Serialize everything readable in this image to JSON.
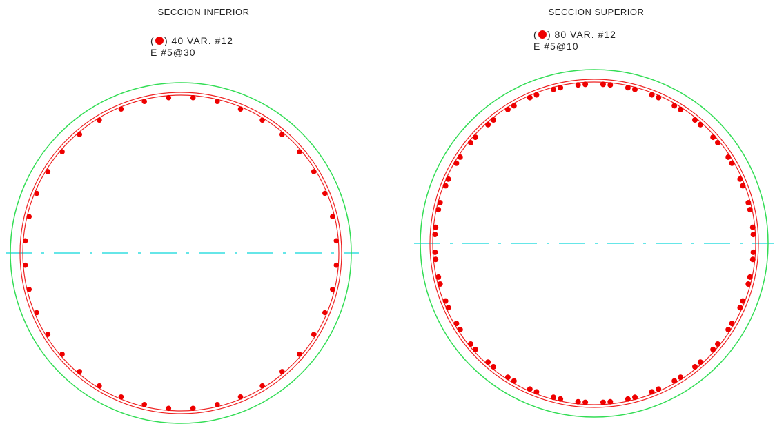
{
  "colors": {
    "outer_circle": "#33dd55",
    "stirrup": "#ee2222",
    "bar": "#ee0000",
    "centerline": "#33dde0",
    "text": "#222222"
  },
  "sections": [
    {
      "title": "SECCION INFERIOR",
      "legend_open": "(",
      "legend_text": ") 40 VAR. #12",
      "stirrup_text": "E #5@30",
      "bar_count": 40,
      "bar_layout": "single"
    },
    {
      "title": "SECCION SUPERIOR",
      "legend_open": "(",
      "legend_text": ") 80 VAR. #12",
      "stirrup_text": "E #5@10",
      "bar_count": 80,
      "bar_layout": "paired"
    }
  ]
}
